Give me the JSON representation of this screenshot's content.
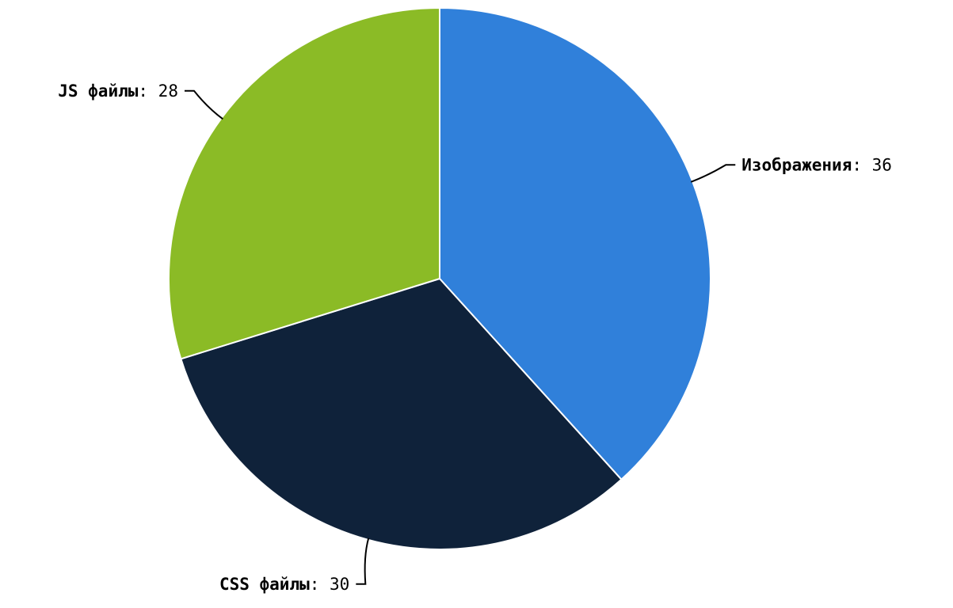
{
  "chart_data": {
    "type": "pie",
    "slices": [
      {
        "label": "Изображения",
        "value": 36,
        "color": "#3080DA"
      },
      {
        "label": "CSS файлы",
        "value": 30,
        "color": "#0F223A"
      },
      {
        "label": "JS файлы",
        "value": 28,
        "color": "#8BBB26"
      }
    ],
    "start": "12 o'clock",
    "direction": "clockwise",
    "label_format": "{label}: {value}",
    "legend": "none"
  }
}
